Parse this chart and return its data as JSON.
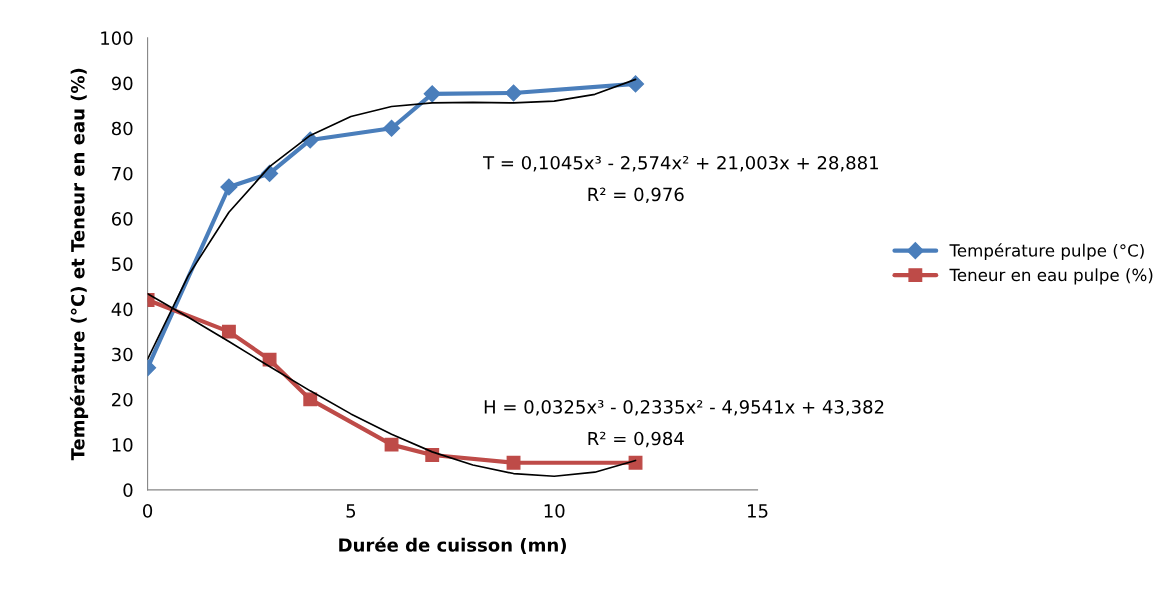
{
  "chart_data": {
    "type": "line",
    "xlabel": "Durée de cuisson (mn)",
    "ylabel": "Température (°C) et Teneur en eau (%)",
    "xlim": [
      0,
      15
    ],
    "xticks": [
      0,
      5,
      10,
      15
    ],
    "ylim": [
      0,
      100
    ],
    "yticks": [
      0,
      10,
      20,
      30,
      40,
      50,
      60,
      70,
      80,
      90,
      100
    ],
    "grid": false,
    "legend": "right",
    "series": [
      {
        "name": "Température pulpe (°C)",
        "color": "#4a7ebb",
        "marker": "diamond",
        "x": [
          0,
          2,
          3,
          4,
          6,
          7,
          9,
          12
        ],
        "values": [
          27,
          67,
          70,
          77.4,
          80,
          87.6,
          87.8,
          89.8
        ]
      },
      {
        "name": "Teneur en eau pulpe (%)",
        "color": "#be4b48",
        "marker": "square",
        "x": [
          0,
          2,
          3,
          4,
          6,
          7,
          9,
          12
        ],
        "values": [
          42,
          35,
          28.8,
          20,
          10,
          7.7,
          6,
          6
        ]
      },
      {
        "color": "#000000",
        "marker": "none",
        "x": [
          0,
          1,
          2,
          3,
          4,
          5,
          6,
          7,
          8,
          9,
          10,
          11,
          12
        ],
        "values": [
          28.9,
          47.4,
          61.4,
          71.5,
          78.4,
          82.6,
          84.8,
          85.6,
          85.7,
          85.6,
          86,
          87.5,
          90.8
        ]
      },
      {
        "color": "#000000",
        "marker": "none",
        "x": [
          0,
          1,
          2,
          3,
          4,
          5,
          6,
          7,
          8,
          9,
          10,
          11,
          12
        ],
        "values": [
          43.4,
          38.2,
          32.8,
          27.3,
          21.9,
          16.8,
          12.3,
          8.4,
          5.5,
          3.6,
          3,
          3.9,
          6.5
        ]
      }
    ],
    "annotations": [
      "T = 0,1045x³ - 2,574x² + 21,003x + 28,881",
      "R² = 0,976",
      "H = 0,0325x³ - 0,2335x² - 4,9541x + 43,382",
      "R² = 0,984"
    ]
  }
}
